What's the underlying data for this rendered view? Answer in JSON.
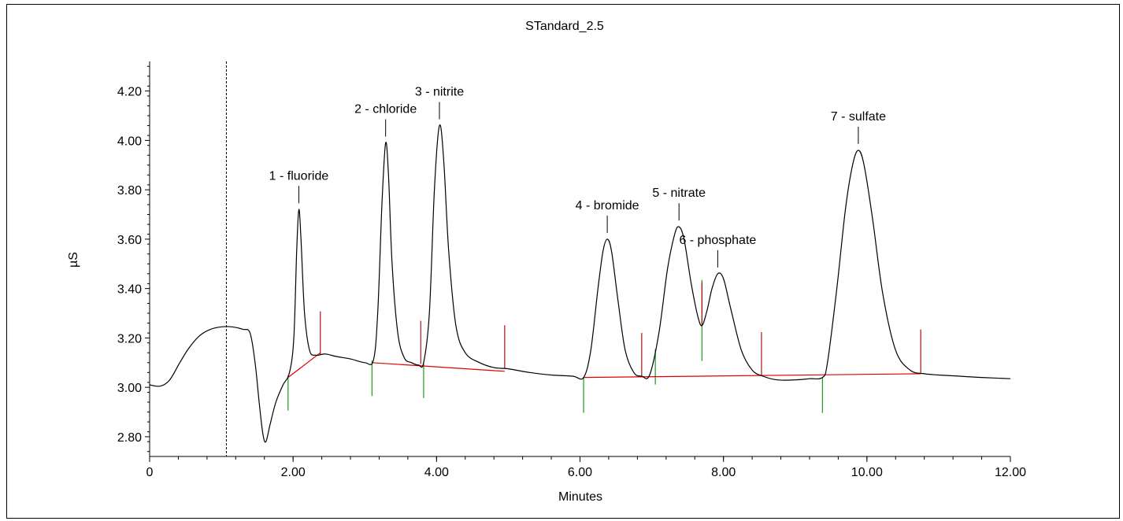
{
  "chart_data": {
    "type": "line",
    "title": "STandard_2.5",
    "xlabel": "Minutes",
    "ylabel": "µS",
    "xlim": [
      0,
      12
    ],
    "ylim": [
      2.72,
      4.32
    ],
    "x_ticks": [
      0,
      2,
      4,
      6,
      8,
      10,
      12
    ],
    "x_tick_labels": [
      "0",
      "2.00",
      "4.00",
      "6.00",
      "8.00",
      "10.00",
      "12.00"
    ],
    "y_ticks": [
      2.8,
      3.0,
      3.2,
      3.4,
      3.6,
      3.8,
      4.0,
      4.2
    ],
    "y_tick_labels": [
      "2.80",
      "3.00",
      "3.20",
      "3.40",
      "3.60",
      "3.80",
      "4.00",
      "4.20"
    ],
    "grid": false,
    "injection_marker_x": 1.07,
    "trace_color": "#000000",
    "baseline_color": "#e00000",
    "peak_start_marker_color": "#1a9a1a",
    "peak_end_marker_color": "#b01010",
    "series": [
      {
        "values": [
          [
            0.0,
            3.01
          ],
          [
            0.15,
            3.005
          ],
          [
            0.28,
            3.03
          ],
          [
            0.42,
            3.1
          ],
          [
            0.55,
            3.16
          ],
          [
            0.7,
            3.21
          ],
          [
            0.85,
            3.235
          ],
          [
            1.0,
            3.245
          ],
          [
            1.15,
            3.245
          ],
          [
            1.3,
            3.235
          ],
          [
            1.4,
            3.22
          ],
          [
            1.47,
            3.1
          ],
          [
            1.53,
            2.93
          ],
          [
            1.58,
            2.81
          ],
          [
            1.62,
            2.78
          ],
          [
            1.68,
            2.85
          ],
          [
            1.76,
            2.94
          ],
          [
            1.86,
            3.01
          ],
          [
            1.95,
            3.06
          ],
          [
            2.01,
            3.2
          ],
          [
            2.05,
            3.55
          ],
          [
            2.08,
            3.72
          ],
          [
            2.11,
            3.6
          ],
          [
            2.16,
            3.3
          ],
          [
            2.23,
            3.15
          ],
          [
            2.32,
            3.13
          ],
          [
            2.45,
            3.135
          ],
          [
            2.6,
            3.125
          ],
          [
            2.8,
            3.115
          ],
          [
            3.0,
            3.1
          ],
          [
            3.12,
            3.11
          ],
          [
            3.18,
            3.3
          ],
          [
            3.24,
            3.75
          ],
          [
            3.29,
            3.99
          ],
          [
            3.33,
            3.86
          ],
          [
            3.38,
            3.5
          ],
          [
            3.46,
            3.22
          ],
          [
            3.55,
            3.12
          ],
          [
            3.65,
            3.1
          ],
          [
            3.75,
            3.09
          ],
          [
            3.82,
            3.1
          ],
          [
            3.9,
            3.3
          ],
          [
            3.97,
            3.8
          ],
          [
            4.04,
            4.06
          ],
          [
            4.1,
            3.92
          ],
          [
            4.17,
            3.55
          ],
          [
            4.27,
            3.25
          ],
          [
            4.4,
            3.14
          ],
          [
            4.6,
            3.1
          ],
          [
            4.8,
            3.08
          ],
          [
            5.0,
            3.075
          ],
          [
            5.3,
            3.06
          ],
          [
            5.6,
            3.05
          ],
          [
            5.9,
            3.045
          ],
          [
            6.05,
            3.04
          ],
          [
            6.15,
            3.15
          ],
          [
            6.25,
            3.4
          ],
          [
            6.32,
            3.55
          ],
          [
            6.38,
            3.6
          ],
          [
            6.44,
            3.55
          ],
          [
            6.53,
            3.35
          ],
          [
            6.63,
            3.15
          ],
          [
            6.75,
            3.06
          ],
          [
            6.86,
            3.045
          ],
          [
            6.97,
            3.05
          ],
          [
            7.1,
            3.22
          ],
          [
            7.22,
            3.48
          ],
          [
            7.32,
            3.62
          ],
          [
            7.38,
            3.65
          ],
          [
            7.45,
            3.6
          ],
          [
            7.55,
            3.42
          ],
          [
            7.64,
            3.29
          ],
          [
            7.7,
            3.25
          ],
          [
            7.77,
            3.31
          ],
          [
            7.84,
            3.4
          ],
          [
            7.92,
            3.46
          ],
          [
            8.0,
            3.44
          ],
          [
            8.1,
            3.32
          ],
          [
            8.25,
            3.15
          ],
          [
            8.4,
            3.07
          ],
          [
            8.55,
            3.045
          ],
          [
            8.75,
            3.03
          ],
          [
            9.0,
            3.03
          ],
          [
            9.2,
            3.035
          ],
          [
            9.38,
            3.04
          ],
          [
            9.45,
            3.1
          ],
          [
            9.58,
            3.4
          ],
          [
            9.7,
            3.72
          ],
          [
            9.8,
            3.9
          ],
          [
            9.88,
            3.96
          ],
          [
            9.96,
            3.9
          ],
          [
            10.08,
            3.68
          ],
          [
            10.22,
            3.38
          ],
          [
            10.4,
            3.15
          ],
          [
            10.6,
            3.07
          ],
          [
            10.8,
            3.055
          ],
          [
            11.0,
            3.05
          ],
          [
            11.3,
            3.045
          ],
          [
            11.6,
            3.04
          ],
          [
            12.0,
            3.035
          ]
        ]
      }
    ],
    "baseline_segments": [
      [
        [
          1.93,
          3.04
        ],
        [
          2.38,
          3.14
        ]
      ],
      [
        [
          3.1,
          3.1
        ],
        [
          4.95,
          3.065
        ]
      ],
      [
        [
          6.05,
          3.04
        ],
        [
          10.75,
          3.055
        ]
      ]
    ],
    "peak_start_markers": [
      1.93,
      3.1,
      3.82,
      6.05,
      7.05,
      7.7,
      9.38
    ],
    "peak_end_markers": [
      2.38,
      3.78,
      4.95,
      6.86,
      7.7,
      8.53,
      10.75
    ],
    "annotations": [
      {
        "label": "1 - fluoride",
        "x": 2.08,
        "y": 3.72
      },
      {
        "label": "2 - chloride",
        "x": 3.29,
        "y": 3.99
      },
      {
        "label": "3 - nitrite",
        "x": 4.04,
        "y": 4.06
      },
      {
        "label": "4 - bromide",
        "x": 6.38,
        "y": 3.6
      },
      {
        "label": "5 - nitrate",
        "x": 7.38,
        "y": 3.65
      },
      {
        "label": "6 - phosphate",
        "x": 7.92,
        "y": 3.46
      },
      {
        "label": "7 - sulfate",
        "x": 9.88,
        "y": 3.96
      }
    ]
  }
}
